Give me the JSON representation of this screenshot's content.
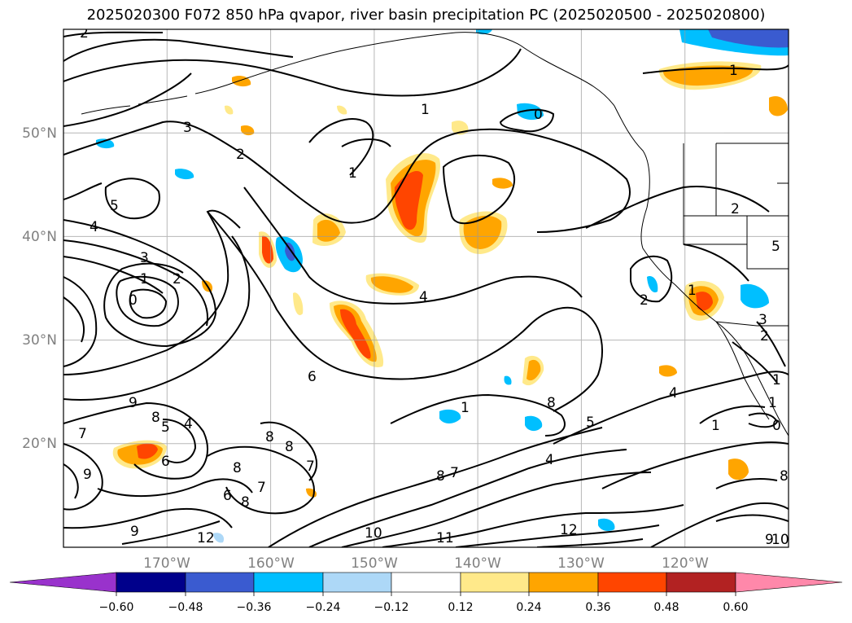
{
  "title": "2025020300 F072 850 hPa qvapor, river basin precipitation PC (2025020500 - 2025020800)",
  "map": {
    "lon_range": [
      180,
      110
    ],
    "lat_range": [
      10,
      60
    ],
    "lat_labels": [
      "20°N",
      "30°N",
      "40°N",
      "50°N"
    ],
    "lat_values": [
      20,
      30,
      40,
      50
    ],
    "lon_labels": [
      "170°W",
      "160°W",
      "150°W",
      "140°W",
      "130°W",
      "120°W"
    ],
    "lon_values": [
      170,
      160,
      150,
      140,
      130,
      120
    ],
    "grid": true,
    "label_color": "#808080",
    "contour_color": "#000000"
  },
  "contour_labels": [
    "2",
    "1",
    "3",
    "2",
    "1",
    "5",
    "4",
    "3",
    "2",
    "1",
    "0",
    "1",
    "0",
    "4",
    "6",
    "2",
    "5",
    "2",
    "1",
    "3",
    "2",
    "1",
    "9",
    "8",
    "7",
    "5",
    "4",
    "6",
    "8",
    "8",
    "8",
    "7",
    "9",
    "7",
    "6",
    "8",
    "9",
    "12",
    "10",
    "11",
    "12",
    "8",
    "7",
    "1",
    "8",
    "5",
    "4",
    "1",
    "4",
    "1",
    "0",
    "8",
    "9",
    "10"
  ],
  "colorbar": {
    "ticks": [
      "−0.60",
      "−0.48",
      "−0.36",
      "−0.24",
      "−0.12",
      "0.12",
      "0.24",
      "0.36",
      "0.48",
      "0.60"
    ],
    "low_extend_color": "#9932cc",
    "high_extend_color": "#ff88aa",
    "bins": [
      "#00008b",
      "#3a5bd0",
      "#00bfff",
      "#add8f7",
      "#ffffff",
      "#ffe98a",
      "#ffa500",
      "#ff4500",
      "#b22222"
    ]
  }
}
